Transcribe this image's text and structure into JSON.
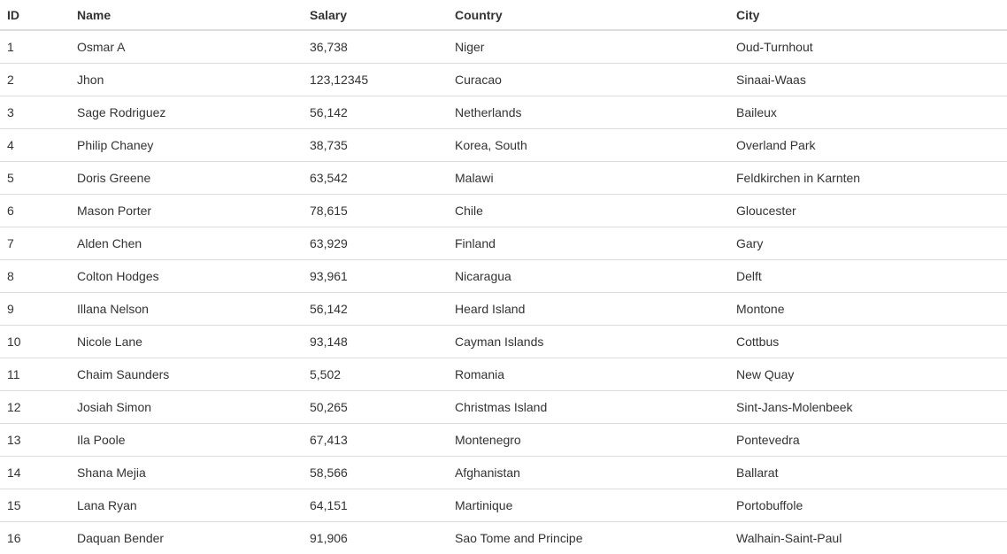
{
  "table": {
    "columns": [
      "ID",
      "Name",
      "Salary",
      "Country",
      "City"
    ],
    "rows": [
      [
        "1",
        "Osmar A",
        "36,738",
        "Niger",
        "Oud-Turnhout"
      ],
      [
        "2",
        "Jhon",
        "123,12345",
        "Curacao",
        "Sinaai-Waas"
      ],
      [
        "3",
        "Sage Rodriguez",
        "56,142",
        "Netherlands",
        "Baileux"
      ],
      [
        "4",
        "Philip Chaney",
        "38,735",
        "Korea, South",
        "Overland Park"
      ],
      [
        "5",
        "Doris Greene",
        "63,542",
        "Malawi",
        "Feldkirchen in Karnten"
      ],
      [
        "6",
        "Mason Porter",
        "78,615",
        "Chile",
        "Gloucester"
      ],
      [
        "7",
        "Alden Chen",
        "63,929",
        "Finland",
        "Gary"
      ],
      [
        "8",
        "Colton Hodges",
        "93,961",
        "Nicaragua",
        "Delft"
      ],
      [
        "9",
        "Illana Nelson",
        "56,142",
        "Heard Island",
        "Montone"
      ],
      [
        "10",
        "Nicole Lane",
        "93,148",
        "Cayman Islands",
        "Cottbus"
      ],
      [
        "11",
        "Chaim Saunders",
        "5,502",
        "Romania",
        "New Quay"
      ],
      [
        "12",
        "Josiah Simon",
        "50,265",
        "Christmas Island",
        "Sint-Jans-Molenbeek"
      ],
      [
        "13",
        "Ila Poole",
        "67,413",
        "Montenegro",
        "Pontevedra"
      ],
      [
        "14",
        "Shana Mejia",
        "58,566",
        "Afghanistan",
        "Ballarat"
      ],
      [
        "15",
        "Lana Ryan",
        "64,151",
        "Martinique",
        "Portobuffole"
      ],
      [
        "16",
        "Daquan Bender",
        "91,906",
        "Sao Tome and Principe",
        "Walhain-Saint-Paul"
      ]
    ]
  }
}
